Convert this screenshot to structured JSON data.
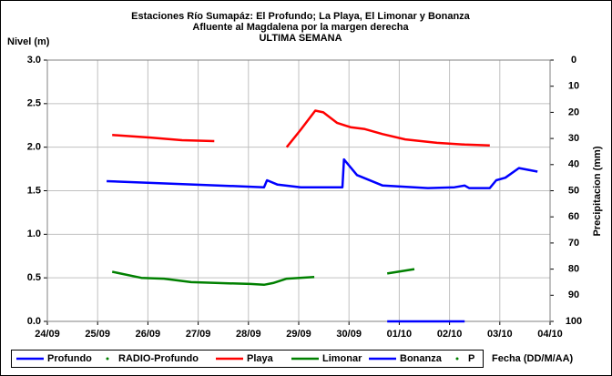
{
  "chart_data": {
    "type": "line",
    "title": [
      "Estaciones Río Sumapáz: El Profundo; La Playa, El Limonar y Bonanza",
      "Afluente al Magdalena por la margen derecha",
      "ULTIMA SEMANA"
    ],
    "ylabel": "Nivel (m)",
    "y2label": "Precipitacion (mm)",
    "xlabel": "Fecha (DD/M/AA)",
    "xlim": [
      0,
      10
    ],
    "xticks": [
      {
        "value": 0,
        "label": "24/09"
      },
      {
        "value": 1,
        "label": "25/09"
      },
      {
        "value": 2,
        "label": "26/09"
      },
      {
        "value": 3,
        "label": "27/09"
      },
      {
        "value": 4,
        "label": "28/09"
      },
      {
        "value": 5,
        "label": "29/09"
      },
      {
        "value": 6,
        "label": "30/09"
      },
      {
        "value": 7,
        "label": "01/10"
      },
      {
        "value": 8,
        "label": "02/10"
      },
      {
        "value": 9,
        "label": "03/10"
      },
      {
        "value": 10,
        "label": "04/10"
      }
    ],
    "ylim": [
      0,
      3
    ],
    "yticks": [
      {
        "value": 0,
        "label": "0.0"
      },
      {
        "value": 0.5,
        "label": "0.5"
      },
      {
        "value": 1,
        "label": "1.0"
      },
      {
        "value": 1.5,
        "label": "1.5"
      },
      {
        "value": 2,
        "label": "2.0"
      },
      {
        "value": 2.5,
        "label": "2.5"
      },
      {
        "value": 3,
        "label": "3.0"
      }
    ],
    "y2lim": [
      0,
      100
    ],
    "y2_inverted": true,
    "y2ticks": [
      0,
      10,
      20,
      30,
      40,
      50,
      60,
      70,
      80,
      90,
      100
    ],
    "grid": true,
    "series": [
      {
        "name": "Profundo",
        "color": "#0000ff",
        "style": "line",
        "x": [
          1.18,
          4.31,
          4.37,
          4.58,
          5.04,
          5.87,
          5.9,
          6.16,
          6.67,
          7.57,
          8.1,
          8.3,
          8.39,
          8.8,
          8.93,
          9.11,
          9.38,
          9.56,
          9.75
        ],
        "values": [
          1.61,
          1.54,
          1.62,
          1.57,
          1.54,
          1.54,
          1.86,
          1.68,
          1.56,
          1.53,
          1.54,
          1.56,
          1.53,
          1.53,
          1.62,
          1.65,
          1.76,
          1.74,
          1.72
        ]
      },
      {
        "name": "RADIO-Profundo",
        "color": "#008000",
        "style": "dot",
        "x": [],
        "values": []
      },
      {
        "name": "Playa",
        "color": "#ff0000",
        "style": "line",
        "x": [
          1.29,
          2.05,
          2.68,
          3.32,
          4.0,
          4.76,
          5.04,
          5.33,
          5.49,
          5.76,
          6.03,
          6.3,
          6.67,
          7.12,
          7.75,
          8.3,
          8.8
        ],
        "values": [
          2.14,
          2.11,
          2.08,
          2.07,
          null,
          2.0,
          2.2,
          2.42,
          2.4,
          2.28,
          2.23,
          2.21,
          2.15,
          2.09,
          2.05,
          2.03,
          2.02
        ]
      },
      {
        "name": "Limonar",
        "color": "#008000",
        "style": "line",
        "x": [
          1.29,
          1.87,
          2.32,
          2.86,
          3.41,
          4.04,
          4.31,
          4.49,
          4.76,
          5.31,
          6.0,
          6.76,
          7.3
        ],
        "values": [
          0.57,
          0.5,
          0.49,
          0.45,
          0.44,
          0.43,
          0.42,
          0.44,
          0.49,
          0.51,
          null,
          0.55,
          0.6
        ]
      },
      {
        "name": "Bonanza",
        "color": "#0000ff",
        "style": "line",
        "x": [
          6.76,
          8.3
        ],
        "values": [
          0,
          0
        ]
      },
      {
        "name": "P",
        "color": "#008000",
        "style": "dot",
        "x": [],
        "values": []
      }
    ]
  }
}
